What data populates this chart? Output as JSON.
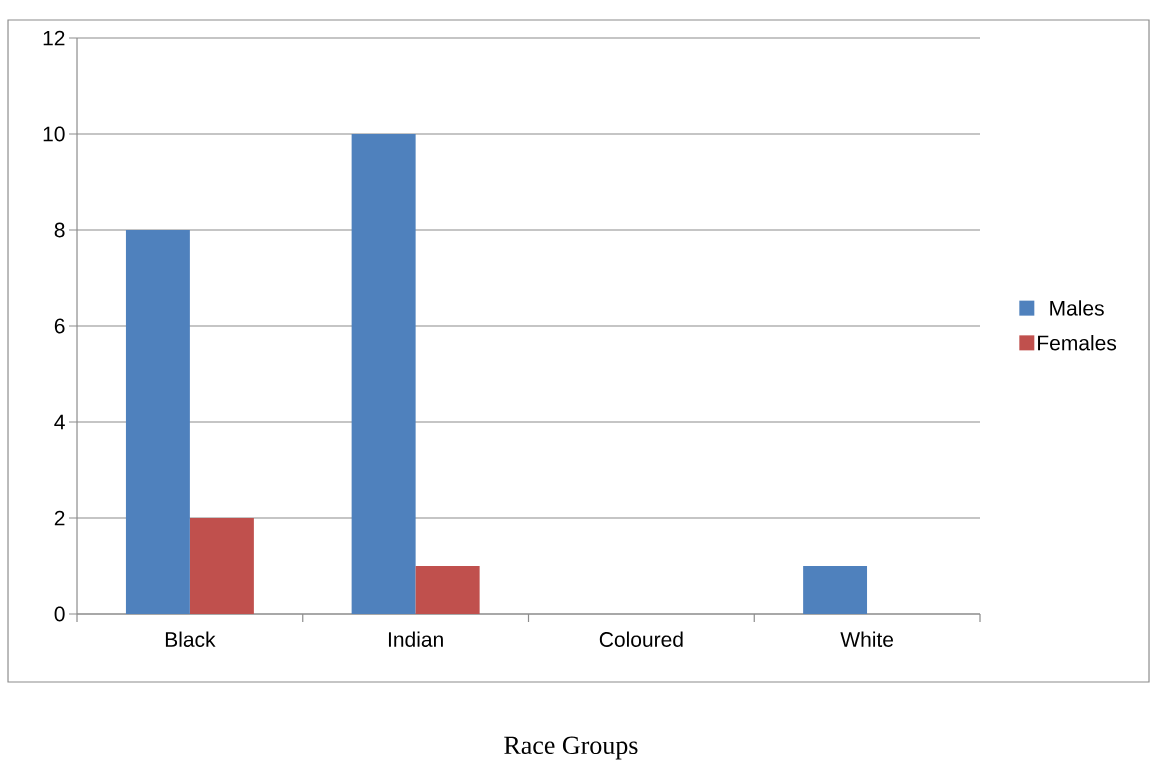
{
  "chart_data": {
    "type": "bar",
    "xlabel": "Race Groups",
    "categories": [
      "Black",
      "Indian",
      "Coloured",
      "White"
    ],
    "series": [
      {
        "name": "Males",
        "color": "#4f81bd",
        "values": [
          8,
          10,
          0,
          1
        ]
      },
      {
        "name": "Females",
        "color": "#c0504d",
        "values": [
          2,
          1,
          0,
          0
        ]
      }
    ],
    "ylim": [
      0,
      12
    ],
    "yticks": [
      0,
      2,
      4,
      6,
      8,
      10,
      12
    ],
    "grid": "y",
    "legend": "right"
  }
}
